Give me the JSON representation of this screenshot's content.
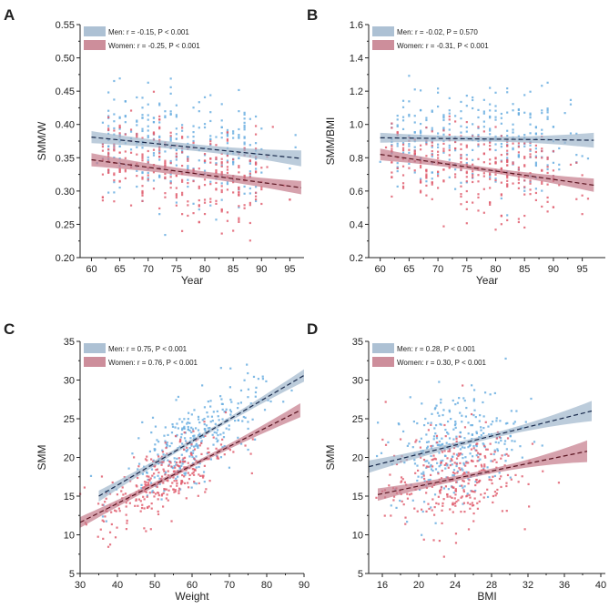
{
  "colors": {
    "men_points": "#6aaee0",
    "men_band": "#9fb6cc",
    "men_line": "#17284a",
    "women_points": "#e05f70",
    "women_band": "#c47a8a",
    "women_line": "#5a1420",
    "axis": "#222222"
  },
  "chart_data": [
    {
      "panel_label": "A",
      "type": "scatter",
      "xlabel": "Year",
      "ylabel": "SMM/W",
      "xlim": [
        58,
        97.5
      ],
      "ylim": [
        0.2,
        0.55
      ],
      "xticks": [
        60,
        65,
        70,
        75,
        80,
        85,
        90,
        95
      ],
      "yticks": [
        "0.20",
        "0.25",
        "0.30",
        "0.35",
        "0.40",
        "0.45",
        "0.50",
        "0.55"
      ],
      "legend_position": "top-left",
      "grid": false,
      "series": [
        {
          "name": "Men: r = -0.15, P < 0.001",
          "fit": {
            "x": [
              60,
              97
            ],
            "y": [
              0.381,
              0.349
            ]
          },
          "ci_halfwidth": [
            0.009,
            0.005,
            0.012
          ]
        },
        {
          "name": "Women: r = -0.25, P < 0.001",
          "fit": {
            "x": [
              60,
              97
            ],
            "y": [
              0.347,
              0.305
            ]
          },
          "ci_halfwidth": [
            0.01,
            0.005,
            0.01
          ]
        }
      ]
    },
    {
      "panel_label": "B",
      "type": "scatter",
      "xlabel": "Year",
      "ylabel": "SMM/BMI",
      "xlim": [
        58,
        99
      ],
      "ylim": [
        0.2,
        1.6
      ],
      "xticks": [
        60,
        65,
        70,
        75,
        80,
        85,
        90,
        95
      ],
      "yticks": [
        "0.2",
        "0.4",
        "0.6",
        "0.8",
        "1.0",
        "1.2",
        "1.4",
        "1.6"
      ],
      "legend_position": "top-left",
      "grid": false,
      "series": [
        {
          "name": "Men: r = -0.02, P = 0.570",
          "fit": {
            "x": [
              60,
              97
            ],
            "y": [
              0.92,
              0.905
            ]
          },
          "ci_halfwidth": [
            0.03,
            0.015,
            0.045
          ]
        },
        {
          "name": "Women: r = -0.31, P < 0.001",
          "fit": {
            "x": [
              60,
              97
            ],
            "y": [
              0.82,
              0.635
            ]
          },
          "ci_halfwidth": [
            0.035,
            0.015,
            0.04
          ]
        }
      ]
    },
    {
      "panel_label": "C",
      "type": "scatter",
      "xlabel": "Weight",
      "ylabel": "SMM",
      "xlim": [
        30,
        90
      ],
      "ylim": [
        5,
        35
      ],
      "xticks": [
        30,
        40,
        50,
        60,
        70,
        80,
        90
      ],
      "yticks": [
        "5",
        "10",
        "15",
        "20",
        "25",
        "30",
        "35"
      ],
      "legend_position": "top-left",
      "grid": false,
      "series": [
        {
          "name": "Men: r = 0.75, P < 0.001",
          "fit": {
            "x": [
              35,
              90
            ],
            "y": [
              15.0,
              30.6
            ]
          },
          "ci_halfwidth": [
            0.7,
            0.25,
            0.8
          ]
        },
        {
          "name": "Women: r = 0.76, P < 0.001",
          "fit": {
            "x": [
              30,
              89
            ],
            "y": [
              11.6,
              26.1
            ]
          },
          "ci_halfwidth": [
            0.7,
            0.25,
            0.9
          ]
        }
      ]
    },
    {
      "panel_label": "D",
      "type": "scatter",
      "xlabel": "BMI",
      "ylabel": "SMM",
      "xlim": [
        14.5,
        40.5
      ],
      "ylim": [
        5,
        35
      ],
      "xticks": [
        16,
        20,
        24,
        28,
        32,
        36,
        40
      ],
      "yticks": [
        "5",
        "10",
        "15",
        "20",
        "25",
        "30",
        "35"
      ],
      "legend_position": "top-left",
      "grid": false,
      "series": [
        {
          "name": "Men: r = 0.28, P < 0.001",
          "fit": {
            "x": [
              14.5,
              39
            ],
            "y": [
              18.8,
              26.0
            ]
          },
          "ci_halfwidth": [
            0.8,
            0.3,
            1.3
          ]
        },
        {
          "name": "Women: r = 0.30, P < 0.001",
          "fit": {
            "x": [
              15.5,
              38.5
            ],
            "y": [
              15.2,
              20.8
            ]
          },
          "ci_halfwidth": [
            0.8,
            0.3,
            1.4
          ]
        }
      ]
    }
  ]
}
